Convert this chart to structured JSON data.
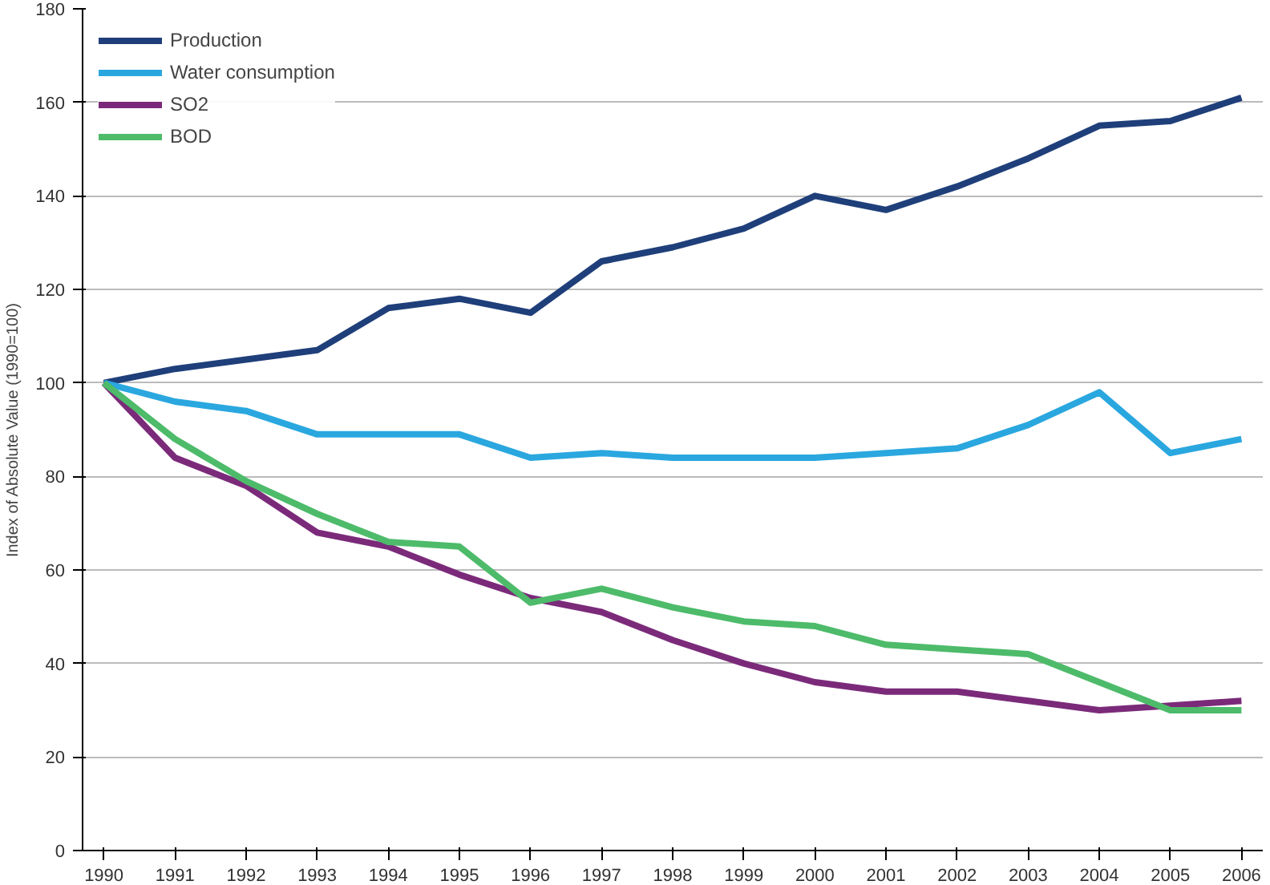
{
  "chart_data": {
    "type": "line",
    "ylabel": "Index of Absolute Value (1990=100)",
    "categories": [
      "1990",
      "1991",
      "1992",
      "1993",
      "1994",
      "1995",
      "1996",
      "1997",
      "1998",
      "1999",
      "2000",
      "2001",
      "2002",
      "2003",
      "2004",
      "2005",
      "2006"
    ],
    "series": [
      {
        "name": "Production",
        "color": "#1f3f7a",
        "values": [
          100,
          103,
          105,
          107,
          116,
          118,
          115,
          126,
          129,
          133,
          140,
          137,
          142,
          148,
          155,
          156,
          161
        ]
      },
      {
        "name": "Water consumption",
        "color": "#2aa7df",
        "values": [
          100,
          96,
          94,
          89,
          89,
          89,
          84,
          85,
          84,
          84,
          84,
          85,
          86,
          91,
          98,
          85,
          88
        ]
      },
      {
        "name": "SO2",
        "color": "#7b2a7a",
        "values": [
          100,
          84,
          78,
          68,
          65,
          59,
          54,
          51,
          45,
          40,
          36,
          34,
          34,
          32,
          30,
          31,
          32
        ]
      },
      {
        "name": "BOD",
        "color": "#4dbb6a",
        "values": [
          100,
          88,
          79,
          72,
          66,
          65,
          53,
          56,
          52,
          49,
          48,
          44,
          43,
          42,
          36,
          30,
          30
        ]
      }
    ],
    "ylim": [
      0,
      180
    ],
    "yticks": [
      0,
      20,
      40,
      60,
      80,
      100,
      120,
      140,
      160,
      180
    ],
    "grid": "y",
    "legend": "top left",
    "marker": "none",
    "line_style": "solid"
  }
}
